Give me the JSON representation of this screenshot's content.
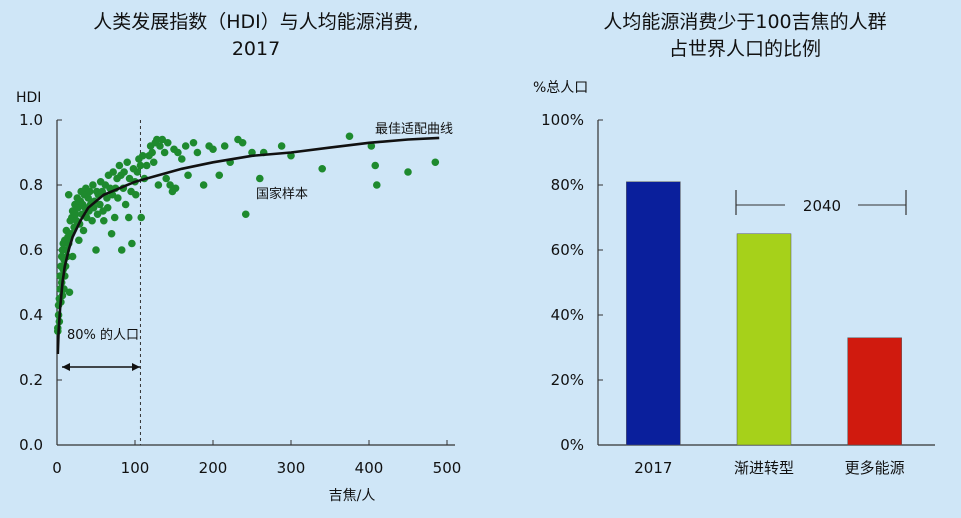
{
  "colors": {
    "background": "#cfe6f7",
    "point": "#1e8a2e",
    "curve": "#111111",
    "bar_2017": "#0a1f9c",
    "bar_gradual": "#a6d11a",
    "bar_more_energy": "#d01a0e"
  },
  "chart_data": [
    {
      "type": "scatter",
      "title": "人类发展指数（HDI）与人均能源消费,",
      "subtitle": "2017",
      "xlabel": "吉焦/人",
      "ylabel": "HDI",
      "xlim": [
        0,
        500
      ],
      "ylim": [
        0.0,
        1.0
      ],
      "xticks": [
        "0",
        "100",
        "200",
        "300",
        "400",
        "500"
      ],
      "yticks": [
        "0.0",
        "0.2",
        "0.4",
        "0.6",
        "0.8",
        "1.0"
      ],
      "grid": false,
      "series": [
        {
          "name": "国家样本",
          "points": [
            [
              1,
              0.35
            ],
            [
              1,
              0.36
            ],
            [
              2,
              0.4
            ],
            [
              2,
              0.43
            ],
            [
              3,
              0.45
            ],
            [
              3,
              0.38
            ],
            [
              4,
              0.48
            ],
            [
              4,
              0.52
            ],
            [
              5,
              0.44
            ],
            [
              5,
              0.55
            ],
            [
              6,
              0.5
            ],
            [
              6,
              0.58
            ],
            [
              7,
              0.46
            ],
            [
              7,
              0.6
            ],
            [
              8,
              0.54
            ],
            [
              8,
              0.62
            ],
            [
              9,
              0.48
            ],
            [
              9,
              0.57
            ],
            [
              10,
              0.63
            ],
            [
              10,
              0.52
            ],
            [
              11,
              0.55
            ],
            [
              12,
              0.6
            ],
            [
              12,
              0.66
            ],
            [
              13,
              0.58
            ],
            [
              14,
              0.64
            ],
            [
              15,
              0.62
            ],
            [
              15,
              0.77
            ],
            [
              16,
              0.47
            ],
            [
              17,
              0.69
            ],
            [
              18,
              0.65
            ],
            [
              19,
              0.7
            ],
            [
              20,
              0.58
            ],
            [
              20,
              0.72
            ],
            [
              22,
              0.67
            ],
            [
              23,
              0.74
            ],
            [
              24,
              0.71
            ],
            [
              25,
              0.69
            ],
            [
              26,
              0.76
            ],
            [
              27,
              0.73
            ],
            [
              28,
              0.63
            ],
            [
              29,
              0.68
            ],
            [
              30,
              0.75
            ],
            [
              31,
              0.78
            ],
            [
              32,
              0.71
            ],
            [
              33,
              0.74
            ],
            [
              34,
              0.66
            ],
            [
              35,
              0.77
            ],
            [
              36,
              0.73
            ],
            [
              37,
              0.79
            ],
            [
              38,
              0.7
            ],
            [
              40,
              0.76
            ],
            [
              41,
              0.72
            ],
            [
              42,
              0.78
            ],
            [
              43,
              0.74
            ],
            [
              45,
              0.69
            ],
            [
              46,
              0.8
            ],
            [
              47,
              0.73
            ],
            [
              48,
              0.75
            ],
            [
              50,
              0.6
            ],
            [
              51,
              0.78
            ],
            [
              52,
              0.71
            ],
            [
              53,
              0.77
            ],
            [
              55,
              0.74
            ],
            [
              56,
              0.81
            ],
            [
              58,
              0.78
            ],
            [
              59,
              0.72
            ],
            [
              60,
              0.69
            ],
            [
              62,
              0.8
            ],
            [
              64,
              0.76
            ],
            [
              65,
              0.73
            ],
            [
              66,
              0.83
            ],
            [
              68,
              0.79
            ],
            [
              70,
              0.65
            ],
            [
              71,
              0.77
            ],
            [
              72,
              0.84
            ],
            [
              74,
              0.7
            ],
            [
              75,
              0.79
            ],
            [
              77,
              0.82
            ],
            [
              78,
              0.76
            ],
            [
              80,
              0.86
            ],
            [
              82,
              0.83
            ],
            [
              83,
              0.6
            ],
            [
              85,
              0.79
            ],
            [
              86,
              0.84
            ],
            [
              88,
              0.74
            ],
            [
              90,
              0.87
            ],
            [
              92,
              0.7
            ],
            [
              93,
              0.82
            ],
            [
              95,
              0.78
            ],
            [
              96,
              0.62
            ],
            [
              98,
              0.85
            ],
            [
              100,
              0.81
            ],
            [
              101,
              0.77
            ],
            [
              103,
              0.84
            ],
            [
              105,
              0.88
            ],
            [
              107,
              0.86
            ],
            [
              108,
              0.7
            ],
            [
              110,
              0.89
            ],
            [
              112,
              0.82
            ],
            [
              115,
              0.86
            ],
            [
              118,
              0.89
            ],
            [
              120,
              0.92
            ],
            [
              122,
              0.9
            ],
            [
              124,
              0.87
            ],
            [
              126,
              0.93
            ],
            [
              128,
              0.94
            ],
            [
              130,
              0.8
            ],
            [
              132,
              0.92
            ],
            [
              135,
              0.94
            ],
            [
              138,
              0.9
            ],
            [
              140,
              0.82
            ],
            [
              142,
              0.93
            ],
            [
              145,
              0.8
            ],
            [
              148,
              0.78
            ],
            [
              150,
              0.91
            ],
            [
              152,
              0.79
            ],
            [
              155,
              0.9
            ],
            [
              160,
              0.88
            ],
            [
              165,
              0.92
            ],
            [
              168,
              0.83
            ],
            [
              175,
              0.93
            ],
            [
              180,
              0.9
            ],
            [
              188,
              0.8
            ],
            [
              195,
              0.92
            ],
            [
              200,
              0.91
            ],
            [
              208,
              0.83
            ],
            [
              215,
              0.92
            ],
            [
              222,
              0.87
            ],
            [
              232,
              0.94
            ],
            [
              238,
              0.93
            ],
            [
              242,
              0.71
            ],
            [
              250,
              0.9
            ],
            [
              260,
              0.82
            ],
            [
              265,
              0.9
            ],
            [
              288,
              0.92
            ],
            [
              300,
              0.89
            ],
            [
              340,
              0.85
            ],
            [
              375,
              0.95
            ],
            [
              403,
              0.92
            ],
            [
              408,
              0.86
            ],
            [
              410,
              0.8
            ],
            [
              450,
              0.84
            ],
            [
              485,
              0.87
            ]
          ]
        },
        {
          "name": "最佳适配曲线",
          "points": [
            [
              1,
              0.28
            ],
            [
              2,
              0.35
            ],
            [
              4,
              0.42
            ],
            [
              7,
              0.5
            ],
            [
              10,
              0.55
            ],
            [
              15,
              0.6
            ],
            [
              20,
              0.64
            ],
            [
              30,
              0.69
            ],
            [
              40,
              0.73
            ],
            [
              50,
              0.75
            ],
            [
              60,
              0.77
            ],
            [
              80,
              0.79
            ],
            [
              100,
              0.81
            ],
            [
              130,
              0.83
            ],
            [
              160,
              0.85
            ],
            [
              200,
              0.87
            ],
            [
              250,
              0.89
            ],
            [
              300,
              0.9
            ],
            [
              350,
              0.915
            ],
            [
              400,
              0.93
            ],
            [
              450,
              0.94
            ],
            [
              490,
              0.945
            ]
          ]
        }
      ],
      "annotations": [
        {
          "text": "80% 的人口",
          "x_range": [
            0,
            107
          ]
        },
        {
          "text": "最佳适配曲线"
        },
        {
          "text": "国家样本"
        }
      ],
      "reference_line_x": 107
    },
    {
      "type": "bar",
      "title": "人均能源消费少于100吉焦的人群",
      "subtitle": "占世界人口的比例",
      "ylabel": "%总人口",
      "ylim": [
        0,
        100
      ],
      "yticks": [
        "0%",
        "20%",
        "40%",
        "60%",
        "80%",
        "100%"
      ],
      "categories": [
        "2017",
        "渐进转型",
        "更多能源"
      ],
      "values": [
        81,
        65,
        33
      ],
      "bracket_label": "2040",
      "grid": false
    }
  ]
}
